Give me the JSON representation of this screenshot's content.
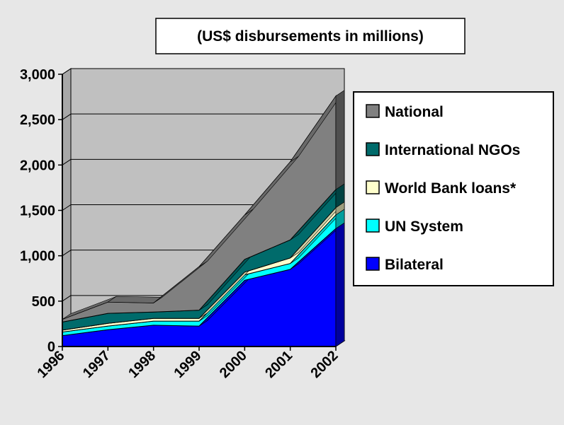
{
  "chart_data": {
    "type": "area",
    "stacked": true,
    "three_d": true,
    "title": "(US$ disbursements in millions)",
    "xlabel": "",
    "ylabel": "",
    "categories": [
      "1996",
      "1997",
      "1998",
      "1999",
      "2000",
      "2001",
      "2002"
    ],
    "ylim": [
      0,
      3000
    ],
    "yticks": [
      0,
      500,
      1000,
      1500,
      2000,
      2500,
      3000
    ],
    "ytick_labels": [
      "0",
      "500",
      "1,000",
      "1,500",
      "2,000",
      "2,500",
      "3,000"
    ],
    "grid": true,
    "legend_position": "right",
    "series": [
      {
        "name": "Bilateral",
        "color": "#0000ff",
        "values": [
          120,
          185,
          235,
          225,
          730,
          850,
          1300
        ]
      },
      {
        "name": "UN System",
        "color": "#00ffff",
        "values": [
          40,
          40,
          45,
          55,
          60,
          65,
          150
        ]
      },
      {
        "name": "World Bank loans*",
        "color": "#ffffcc",
        "values": [
          20,
          30,
          30,
          30,
          30,
          60,
          80
        ]
      },
      {
        "name": "International NGOs",
        "color": "#006b6b",
        "values": [
          90,
          110,
          70,
          90,
          140,
          200,
          200
        ]
      },
      {
        "name": "National",
        "color": "#808080",
        "values": [
          30,
          125,
          100,
          480,
          490,
          860,
          1030
        ]
      }
    ],
    "legend_order": [
      "National",
      "International NGOs",
      "World Bank loans*",
      "UN System",
      "Bilateral"
    ]
  }
}
